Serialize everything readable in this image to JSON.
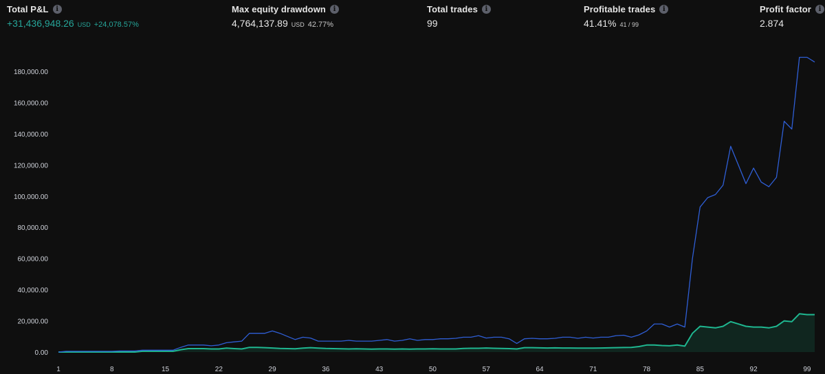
{
  "stats": {
    "total_pnl": {
      "label": "Total P&L",
      "value": "+31,436,948.26",
      "unit": "USD",
      "pct": "+24,078.57%"
    },
    "max_drawdown": {
      "label": "Max equity drawdown",
      "value": "4,764,137.89",
      "unit": "USD",
      "pct": "42.77%"
    },
    "total_trades": {
      "label": "Total trades",
      "value": "99"
    },
    "profitable_trades": {
      "label": "Profitable trades",
      "value": "41.41%",
      "sub": "41 / 99"
    },
    "profit_factor": {
      "label": "Profit factor",
      "value": "2.874"
    }
  },
  "colors": {
    "equity": "#2f5fd7",
    "drawdown": "#1fb891",
    "drawdown_fill": "#10261f",
    "positive": "#26a69a",
    "background": "#0f0f0f"
  },
  "icons": {
    "info": "info-icon"
  },
  "chart_data": {
    "type": "line",
    "x": [
      1,
      2,
      3,
      4,
      5,
      6,
      7,
      8,
      9,
      10,
      11,
      12,
      13,
      14,
      15,
      16,
      17,
      18,
      19,
      20,
      21,
      22,
      23,
      24,
      25,
      26,
      27,
      28,
      29,
      30,
      31,
      32,
      33,
      34,
      35,
      36,
      37,
      38,
      39,
      40,
      41,
      42,
      43,
      44,
      45,
      46,
      47,
      48,
      49,
      50,
      51,
      52,
      53,
      54,
      55,
      56,
      57,
      58,
      59,
      60,
      61,
      62,
      63,
      64,
      65,
      66,
      67,
      68,
      69,
      70,
      71,
      72,
      73,
      74,
      75,
      76,
      77,
      78,
      79,
      80,
      81,
      82,
      83,
      84,
      85,
      86,
      87,
      88,
      89,
      90,
      91,
      92,
      93,
      94,
      95,
      96,
      97,
      98,
      99,
      100
    ],
    "xticks": [
      "1",
      "8",
      "15",
      "22",
      "29",
      "36",
      "43",
      "50",
      "57",
      "64",
      "71",
      "78",
      "85",
      "92",
      "99"
    ],
    "yticks": [
      "0.00",
      "20,000.00",
      "40,000.00",
      "60,000.00",
      "80,000.00",
      "100,000.00",
      "120,000.00",
      "140,000.00",
      "160,000.00",
      "180,000.00"
    ],
    "ylim": [
      0,
      190000
    ],
    "grid": false,
    "series": [
      {
        "values": [
          0,
          500,
          500,
          500,
          500,
          500,
          500,
          500,
          700,
          700,
          700,
          1200,
          1200,
          1200,
          1200,
          1200,
          3000,
          4500,
          4500,
          4500,
          4000,
          4500,
          6000,
          6500,
          7000,
          12000,
          12000,
          12000,
          13500,
          12000,
          10000,
          8000,
          9500,
          9000,
          7000,
          7000,
          7000,
          7000,
          7500,
          7000,
          7000,
          7000,
          7500,
          8000,
          7000,
          7500,
          8500,
          7500,
          8000,
          8000,
          8500,
          8500,
          8800,
          9500,
          9500,
          10500,
          9000,
          9500,
          9500,
          8500,
          5500,
          8500,
          8800,
          8500,
          8500,
          8800,
          9500,
          9500,
          8800,
          9500,
          9000,
          9500,
          9500,
          10500,
          10800,
          9500,
          11000,
          13500,
          18000,
          18000,
          16000,
          18000,
          16000,
          60000,
          93000,
          99000,
          101000,
          107000,
          132000,
          120000,
          108000,
          118000,
          109000,
          106000,
          112000,
          148000,
          143000,
          189000,
          189000,
          186000
        ]
      },
      {
        "values": [
          0,
          0,
          0,
          0,
          0,
          0,
          0,
          0,
          0,
          0,
          0,
          500,
          500,
          500,
          500,
          500,
          1500,
          2200,
          2200,
          2200,
          2000,
          2000,
          2500,
          2200,
          2000,
          3000,
          3000,
          2800,
          2600,
          2300,
          2200,
          2100,
          2500,
          2800,
          2500,
          2300,
          2200,
          2100,
          2000,
          2100,
          2000,
          1900,
          2000,
          2000,
          1900,
          2000,
          1900,
          2000,
          2000,
          2100,
          2000,
          2000,
          2000,
          2300,
          2400,
          2400,
          2600,
          2400,
          2300,
          2200,
          2000,
          2800,
          2800,
          2700,
          2600,
          2700,
          2600,
          2600,
          2500,
          2500,
          2500,
          2600,
          2700,
          2800,
          2900,
          3000,
          3500,
          4500,
          4500,
          4200,
          4000,
          4500,
          3800,
          12000,
          16500,
          16000,
          15500,
          16500,
          19500,
          18000,
          16500,
          16000,
          16000,
          15500,
          16500,
          20000,
          19500,
          24500,
          24000,
          24000
        ]
      }
    ]
  }
}
